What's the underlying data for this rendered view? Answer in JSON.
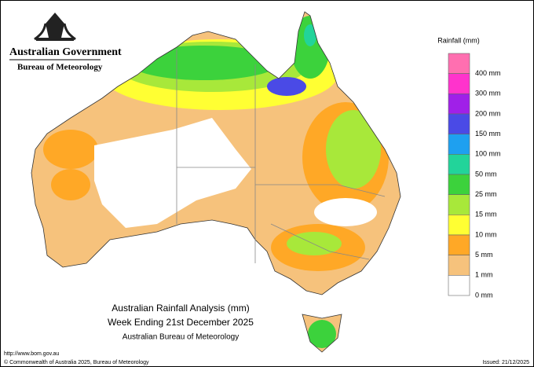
{
  "header": {
    "agency": "Australian Government",
    "bureau": "Bureau of Meteorology"
  },
  "legend": {
    "title": "Rainfall (mm)",
    "colors": [
      "#ff6fb0",
      "#ff33cc",
      "#a020e8",
      "#4a4ae6",
      "#1ea0f0",
      "#22d49a",
      "#3cd23c",
      "#a8e83a",
      "#ffff33",
      "#ffa826",
      "#f6c27c",
      "#ffffff"
    ],
    "labels": [
      "400 mm",
      "300 mm",
      "200 mm",
      "150 mm",
      "100 mm",
      "50 mm",
      "25 mm",
      "15 mm",
      "10 mm",
      "5 mm",
      "1 mm",
      "0 mm"
    ]
  },
  "caption": {
    "title": "Australian Rainfall Analysis (mm)",
    "period": "Week Ending 21st December 2025",
    "source": "Australian Bureau of Meteorology"
  },
  "footer": {
    "url": "http://www.bom.gov.au",
    "copyright": "© Commonwealth of Australia 2025, Bureau of Meteorology",
    "issued": "Issued: 21/12/2025"
  }
}
